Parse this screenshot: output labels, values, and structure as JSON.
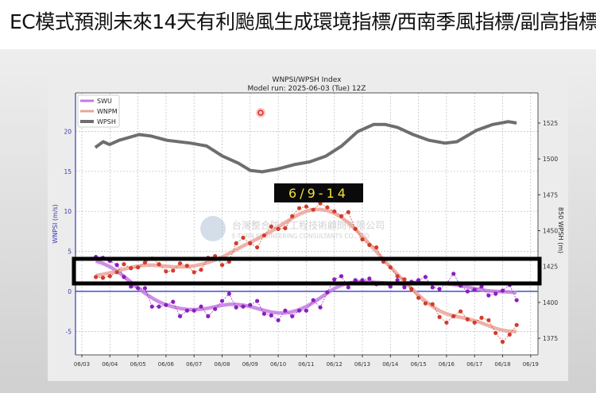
{
  "slide": {
    "title": "EC模式預測未來14天有利颱風生成環境指標/西南季風指標/副高指標"
  },
  "annotation": {
    "label": "6/9-14",
    "highlight": "box around WNPSI 1–4 m/s range"
  },
  "watermark": {
    "zh": "台灣整合防災工程技術顧問有限公司",
    "en": "E-TURN ENGINEERING CONSULTANTS CO., LTD"
  },
  "colors": {
    "swu": "#8a1fbf",
    "swu_smooth": "#c47ae0",
    "wnpm": "#d23c2c",
    "wnpm_smooth": "#eba39a",
    "wpsh": "#6e6e6e",
    "zero": "#1a2fc8",
    "left_axis": "#3a3ab0"
  },
  "chart_data": {
    "type": "line",
    "title": "WNPSI/WPSH Index",
    "subtitle": "Model run: 2025-06-03 (Tue) 12Z",
    "ylabel": "WNPSI (m/s)",
    "y2label": "850 WPSH (m)",
    "xlabel": "",
    "x_ticks": [
      "06/03",
      "06/04",
      "06/05",
      "06/06",
      "06/07",
      "06/08",
      "06/09",
      "06/10",
      "06/11",
      "06/12",
      "06/13",
      "06/14",
      "06/15",
      "06/16",
      "06/17",
      "06/18",
      "06/19"
    ],
    "x_unit": "days since 06/03 00Z",
    "xlim": [
      -0.2,
      16.3
    ],
    "ylim": [
      -8,
      24.5
    ],
    "y_ticks": [
      20,
      15,
      10,
      5,
      0,
      -5
    ],
    "y2lim": [
      1364,
      1544
    ],
    "y2_ticks": [
      1525,
      1500,
      1475,
      1450,
      1425,
      1400,
      1375
    ],
    "legend": {
      "position": "top-left",
      "entries": [
        "SWU",
        "WNPM",
        "WPSH"
      ]
    },
    "grid": true,
    "series": [
      {
        "name": "SWU",
        "axis": "left",
        "x_start": 0.5,
        "x_step": 0.25,
        "values": [
          4.3,
          4.2,
          3.8,
          3.3,
          1.8,
          0.6,
          0.4,
          0.4,
          -1.9,
          -1.9,
          -1.7,
          -1.3,
          -3.1,
          -2.4,
          -2.4,
          -1.9,
          -3.1,
          -2.2,
          -1.2,
          -0.3,
          -2.0,
          -1.9,
          -1.7,
          -1.2,
          -2.8,
          -3.0,
          -3.6,
          -2.4,
          -3.1,
          -2.4,
          -2.4,
          -1.1,
          -2.0,
          -0.1,
          1.5,
          1.9,
          0.5,
          1.4,
          1.4,
          1.6,
          0.9,
          1.0,
          0.6,
          1.4,
          0.5,
          1.2,
          1.4,
          1.8,
          0.5,
          0.3,
          1.0,
          2.2,
          0.7,
          0.0,
          0.2,
          0.6,
          -0.5,
          -0.3,
          0.1,
          0.8,
          -1.1
        ]
      },
      {
        "name": "WNPM",
        "axis": "left",
        "x_start": 0.5,
        "x_step": 0.25,
        "values": [
          1.8,
          1.7,
          1.9,
          2.4,
          3.4,
          2.9,
          3.0,
          3.6,
          4.1,
          3.4,
          2.5,
          2.6,
          3.5,
          3.2,
          2.4,
          2.7,
          4.2,
          4.4,
          3.3,
          3.7,
          6.0,
          6.7,
          6.0,
          5.5,
          7.0,
          8.1,
          7.8,
          7.9,
          9.4,
          10.4,
          10.6,
          10.2,
          11.0,
          10.5,
          10.0,
          9.4,
          9.9,
          7.8,
          6.5,
          5.8,
          5.5,
          3.7,
          3.0,
          1.9,
          1.5,
          0.3,
          -0.8,
          -1.5,
          -1.6,
          -3.2,
          -3.9,
          -3.1,
          -2.5,
          -3.5,
          -3.9,
          -3.3,
          -3.6,
          -5.2,
          -6.3,
          -5.4,
          -4.2
        ]
      },
      {
        "name": "WPSH",
        "axis": "right",
        "x": [
          0.48,
          0.76,
          0.99,
          1.33,
          2.04,
          2.46,
          3.03,
          3.88,
          4.45,
          5.01,
          5.58,
          6.0,
          6.43,
          6.99,
          7.56,
          8.13,
          8.7,
          9.26,
          9.83,
          10.4,
          10.82,
          11.25,
          11.81,
          12.38,
          12.95,
          13.37,
          14.08,
          14.65,
          15.2,
          15.5
        ],
        "values": [
          1508,
          1512,
          1510,
          1513,
          1517,
          1516,
          1513,
          1511,
          1509,
          1502,
          1497,
          1492,
          1491,
          1493,
          1496,
          1498,
          1502,
          1509,
          1519,
          1524,
          1524,
          1522,
          1517,
          1513,
          1511,
          1512,
          1520,
          1524,
          1526,
          1525
        ]
      }
    ]
  }
}
